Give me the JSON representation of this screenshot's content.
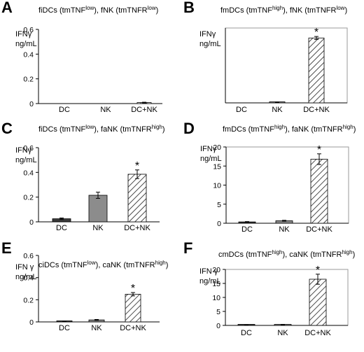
{
  "chart_data": [
    {
      "panel": "A",
      "type": "bar",
      "title": "fiDCs (tmTNF^low), fNK (tmTNFR^low)",
      "title_parts": [
        {
          "t": "fiDCs (tmTNF",
          "sup": false
        },
        {
          "t": "low",
          "sup": true
        },
        {
          "t": "), fNK (tmTNFR",
          "sup": false
        },
        {
          "t": "low",
          "sup": true
        },
        {
          "t": ")",
          "sup": false
        }
      ],
      "ylabel": [
        "IFNγ",
        "ng/mL"
      ],
      "categories": [
        "DC",
        "NK",
        "DC+NK"
      ],
      "values": [
        0.0,
        0.0,
        0.008
      ],
      "errors": [
        0.0,
        0.0,
        0.003
      ],
      "fills": [
        "solid-dark",
        "solid-gray",
        "hatch"
      ],
      "significant": [
        false,
        false,
        false
      ],
      "ylim": [
        0,
        0.6
      ],
      "yticks": [
        0,
        0.2,
        0.4,
        0.6
      ],
      "ytick_labels": [
        "0",
        "0.2",
        "0.4",
        "0.6"
      ],
      "box": false
    },
    {
      "panel": "B",
      "type": "bar",
      "title": "fmDCs (tmTNF^high), fNK (tmTNFR^low)",
      "title_parts": [
        {
          "t": "fmDCs (tmTNF",
          "sup": false
        },
        {
          "t": "high",
          "sup": true
        },
        {
          "t": "), fNK (tmTNFR",
          "sup": false
        },
        {
          "t": "low",
          "sup": true
        },
        {
          "t": ")",
          "sup": false
        }
      ],
      "ylabel": [
        "IFNγ",
        "ng/mL"
      ],
      "categories": [
        "DC",
        "NK",
        "DC+NK"
      ],
      "values": [
        0.0,
        0.004,
        0.52
      ],
      "errors": [
        0.0,
        0.002,
        0.012
      ],
      "fills": [
        "solid-dark",
        "solid-gray",
        "hatch"
      ],
      "significant": [
        false,
        false,
        true
      ],
      "ylim": [
        0,
        0.6
      ],
      "yticks": [],
      "ytick_labels": [],
      "box": true
    },
    {
      "panel": "C",
      "type": "bar",
      "title": "fiDCs (tmTNF^low), faNK (tmTNFR^high)",
      "title_parts": [
        {
          "t": "fiDCs (tmTNF",
          "sup": false
        },
        {
          "t": "low",
          "sup": true
        },
        {
          "t": "), faNK (tmTNFR",
          "sup": false
        },
        {
          "t": "high",
          "sup": true
        },
        {
          "t": ")",
          "sup": false
        }
      ],
      "ylabel": [
        "IFNγ",
        "ng/mL"
      ],
      "categories": [
        "DC",
        "NK",
        "DC+NK"
      ],
      "values": [
        0.025,
        0.215,
        0.385
      ],
      "errors": [
        0.006,
        0.025,
        0.035
      ],
      "fills": [
        "solid-dark",
        "solid-gray",
        "hatch"
      ],
      "significant": [
        false,
        false,
        true
      ],
      "ylim": [
        0,
        0.6
      ],
      "yticks": [
        0,
        0.2,
        0.4,
        0.6
      ],
      "ytick_labels": [
        "0",
        "0.2",
        "0.4",
        "0.6"
      ],
      "box": false
    },
    {
      "panel": "D",
      "type": "bar",
      "title": "fmDCs (tmTNF^high), faNK (tmTNFR^high)",
      "title_parts": [
        {
          "t": "fmDCs (tmTNF",
          "sup": false
        },
        {
          "t": "high",
          "sup": true
        },
        {
          "t": "), faNK (tmTNFR",
          "sup": false
        },
        {
          "t": "high",
          "sup": true
        },
        {
          "t": ")",
          "sup": false
        }
      ],
      "ylabel": [
        "IFNγ",
        "ng/mL"
      ],
      "categories": [
        "DC",
        "NK",
        "DC+NK"
      ],
      "values": [
        0.35,
        0.65,
        16.8
      ],
      "errors": [
        0.08,
        0.12,
        1.4
      ],
      "fills": [
        "solid-dark",
        "solid-gray",
        "hatch"
      ],
      "significant": [
        false,
        false,
        true
      ],
      "ylim": [
        0,
        20
      ],
      "yticks": [
        0,
        5,
        10,
        15,
        20
      ],
      "ytick_labels": [
        "0",
        "5",
        "10",
        "15",
        "20"
      ],
      "box": true
    },
    {
      "panel": "E",
      "type": "bar",
      "title": "ciDCs (tmTNF^low), caNK (tmTNFR^high)",
      "title_parts": [
        {
          "t": "ciDCs (tmTNF",
          "sup": false
        },
        {
          "t": "low",
          "sup": true
        },
        {
          "t": "), caNK (tmTNFR",
          "sup": false
        },
        {
          "t": "high",
          "sup": true
        },
        {
          "t": ")",
          "sup": false
        }
      ],
      "ylabel": [
        "IFN γ",
        "ng/mL"
      ],
      "categories": [
        "DC",
        "NK",
        "DC+NK"
      ],
      "values": [
        0.004,
        0.018,
        0.25
      ],
      "errors": [
        0.002,
        0.004,
        0.015
      ],
      "fills": [
        "solid-dark",
        "solid-gray",
        "hatch"
      ],
      "significant": [
        false,
        false,
        true
      ],
      "ylim": [
        0,
        0.6
      ],
      "yticks": [
        0,
        0.2,
        0.4,
        0.6
      ],
      "ytick_labels": [
        "0",
        "0.2",
        "0.4",
        "0.6"
      ],
      "box": false
    },
    {
      "panel": "F",
      "type": "bar",
      "title": "cmDCs (tmTNF^high), caNK (tmTNFR^high)",
      "title_parts": [
        {
          "t": "cmDCs (tmTNF",
          "sup": false
        },
        {
          "t": "high",
          "sup": true
        },
        {
          "t": "), caNK (tmTNFR",
          "sup": false
        },
        {
          "t": "high",
          "sup": true
        },
        {
          "t": ")",
          "sup": false
        }
      ],
      "ylabel": [
        "IFN γ",
        "ng/mL"
      ],
      "categories": [
        "DC",
        "NK",
        "DC+NK"
      ],
      "values": [
        0.15,
        0.3,
        16.5
      ],
      "errors": [
        0.05,
        0.08,
        1.8
      ],
      "fills": [
        "solid-dark",
        "solid-gray",
        "hatch"
      ],
      "significant": [
        false,
        false,
        true
      ],
      "ylim": [
        0,
        20
      ],
      "yticks": [
        0,
        5,
        10,
        15,
        20
      ],
      "ytick_labels": [
        "0",
        "5",
        "10",
        "15",
        "20"
      ],
      "box": true
    }
  ],
  "colors": {
    "bar_dark": "#3a3a3a",
    "bar_gray": "#8c8c8c",
    "hatch_line": "#222222",
    "axis": "#000000",
    "box": "#9a9a9a"
  },
  "significance_mark": "*"
}
